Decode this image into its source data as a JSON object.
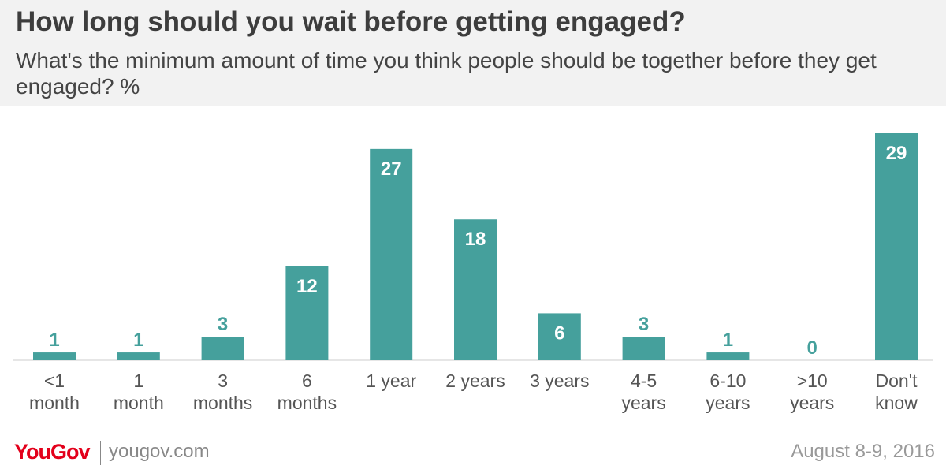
{
  "header": {
    "title": "How long should you wait before getting engaged?",
    "subtitle": "What's the minimum amount of time you think people should be together before they get engaged? %"
  },
  "colors": {
    "bar": "#45a09c",
    "label_inside": "#ffffff",
    "label_outside": "#45a09c",
    "axis_text": "#555555",
    "brand": "#e3001b"
  },
  "chart_data": {
    "type": "bar",
    "title": "How long should you wait before getting engaged?",
    "subtitle": "What's the minimum amount of time you think people should be together before they get engaged? %",
    "categories": [
      [
        "<1",
        "month"
      ],
      [
        "1",
        "month"
      ],
      [
        "3",
        "months"
      ],
      [
        "6",
        "months"
      ],
      [
        "1 year"
      ],
      [
        "2 years"
      ],
      [
        "3 years"
      ],
      [
        "4-5",
        "years"
      ],
      [
        "6-10",
        "years"
      ],
      [
        ">10",
        "years"
      ],
      [
        "Don't",
        "know"
      ]
    ],
    "values": [
      1,
      1,
      3,
      12,
      27,
      18,
      6,
      3,
      1,
      0,
      29
    ],
    "ylim": [
      0,
      29
    ],
    "grid": false,
    "legend": "none"
  },
  "footer": {
    "logo": "YouGov",
    "url": "yougov.com",
    "date": "August 8-9, 2016"
  }
}
